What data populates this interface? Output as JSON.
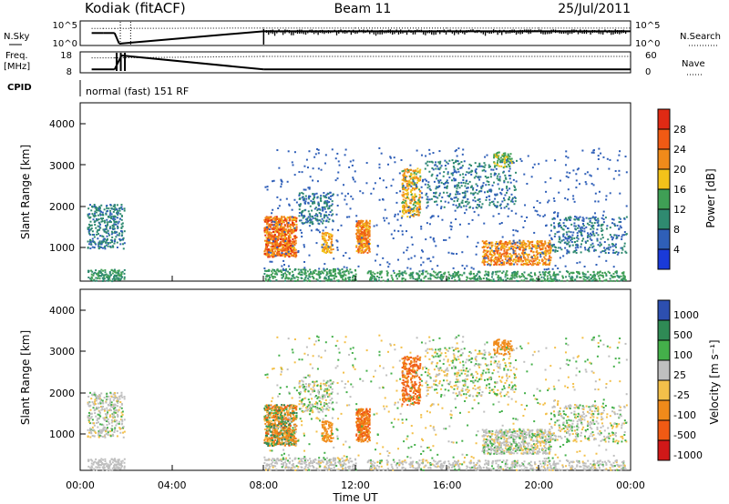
{
  "header": {
    "station": "Kodiak (fitACF)",
    "beam": "Beam 11",
    "date": "25/Jul/2011"
  },
  "left_labels": {
    "nsky": "N.Sky",
    "freq": "Freq.",
    "freq_unit": "[MHz]",
    "cpid": "CPID"
  },
  "right_labels": {
    "nsearch": "N.Search",
    "nave": "Nave"
  },
  "cpid_text": "normal (fast) 151 RF",
  "colors": {
    "power": [
      "#1a3ad8",
      "#2f5fb8",
      "#2f8a70",
      "#3f9f55",
      "#f2c21a",
      "#f08a1a",
      "#f05a14",
      "#e02a14"
    ],
    "velocity": [
      "#d01818",
      "#f05a14",
      "#f08a1a",
      "#f3c04a",
      "#bfbfbf",
      "#44b04a",
      "#2f8a55",
      "#2d4fb0"
    ]
  },
  "chart_data": [
    {
      "type": "line",
      "title": "N.Sky / N.Search",
      "y_ticks_left": [
        "10^5",
        "10^0"
      ],
      "y_ticks_right": [
        "10^5",
        "10^0"
      ],
      "series": [
        {
          "name": "N.Sky",
          "x_hours": [
            0.5,
            1.0,
            1.5,
            1.7,
            8.0,
            10.0,
            12.0,
            14.0,
            16.0,
            18.0,
            20.0,
            22.0,
            24.0
          ],
          "values": [
            3.0,
            3.0,
            3.0,
            0.0,
            3.5,
            3.5,
            3.5,
            3.5,
            3.5,
            3.5,
            3.5,
            3.5,
            3.5
          ]
        },
        {
          "name": "N.Search",
          "x_hours": [
            0.5,
            1.0,
            1.5,
            8.0,
            12.0,
            16.0,
            20.0,
            24.0
          ],
          "values": [
            4.3,
            4.3,
            4.3,
            4.4,
            4.4,
            4.4,
            4.4,
            4.4
          ]
        }
      ]
    },
    {
      "type": "line",
      "title": "Freq. / Nave",
      "y_ticks_left": [
        "18",
        "8"
      ],
      "y_ticks_right": [
        "60",
        "0"
      ],
      "series": [
        {
          "name": "Freq.",
          "x_hours": [
            0.5,
            1.5,
            1.8,
            8.0,
            24.0
          ],
          "values": [
            9,
            9,
            18,
            9,
            9
          ]
        },
        {
          "name": "Nave",
          "x_hours": [
            0.5,
            1.5,
            8.0,
            24.0
          ],
          "values": [
            45,
            45,
            50,
            50
          ]
        }
      ]
    },
    {
      "type": "heatmap",
      "ylabel": "Slant Range [km]",
      "y_ticks": [
        "4000",
        "3000",
        "2000",
        "1000"
      ],
      "ylim": [
        180,
        4600
      ],
      "colorbar_label": "Power [dB]",
      "colorbar_ticks": [
        "28",
        "24",
        "20",
        "16",
        "12",
        "8",
        "4"
      ],
      "colorbar_range": [
        0,
        32
      ]
    },
    {
      "type": "heatmap",
      "ylabel": "Slant Range [km]",
      "y_ticks": [
        "4000",
        "3000",
        "2000",
        "1000"
      ],
      "ylim": [
        180,
        4600
      ],
      "colorbar_label": "Velocity [m s⁻¹]",
      "colorbar_ticks": [
        "1000",
        "500",
        "100",
        "25",
        "-25",
        "-100",
        "-500",
        "-1000"
      ],
      "xlabel": "Time UT",
      "x_ticks": [
        "00:00",
        "04:00",
        "08:00",
        "12:00",
        "16:00",
        "20:00",
        "00:00"
      ],
      "xlim_hours": [
        0,
        24
      ]
    }
  ]
}
